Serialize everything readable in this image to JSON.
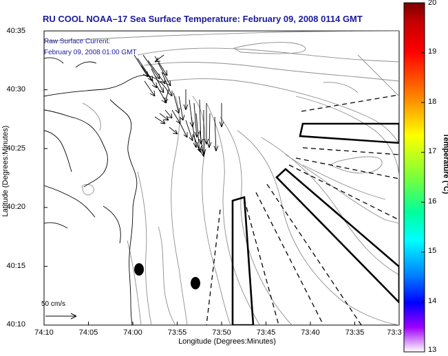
{
  "title": "RU COOL  NOAA–17  Sea Surface Temperature:  February 09, 2008 0114 GMT",
  "inset": {
    "line1": "Raw Surface Current:",
    "line2": "February 09, 2008 01:00 GMT"
  },
  "axes": {
    "xlabel": "Longitude (Degrees:Minutes)",
    "ylabel": "Latitude (Degrees:Minutes)",
    "xticks": [
      "74:10",
      "74:05",
      "74:00",
      "73:55",
      "73:50",
      "73:45",
      "73:40",
      "73:35",
      "73:3"
    ],
    "yticks": [
      "40:35",
      "40:30",
      "40:25",
      "40:20",
      "40:15",
      "40:10"
    ]
  },
  "colorbar": {
    "title": "Temperature (°C)",
    "ticks": [
      "20",
      "19",
      "18",
      "17",
      "16",
      "15",
      "14",
      "13"
    ],
    "min": 13,
    "max": 20
  },
  "scale": {
    "label": "50 cm/s"
  },
  "colors": {
    "title": "#1a1a9c",
    "frame": "#000000",
    "contour": "#8c8c8c"
  }
}
